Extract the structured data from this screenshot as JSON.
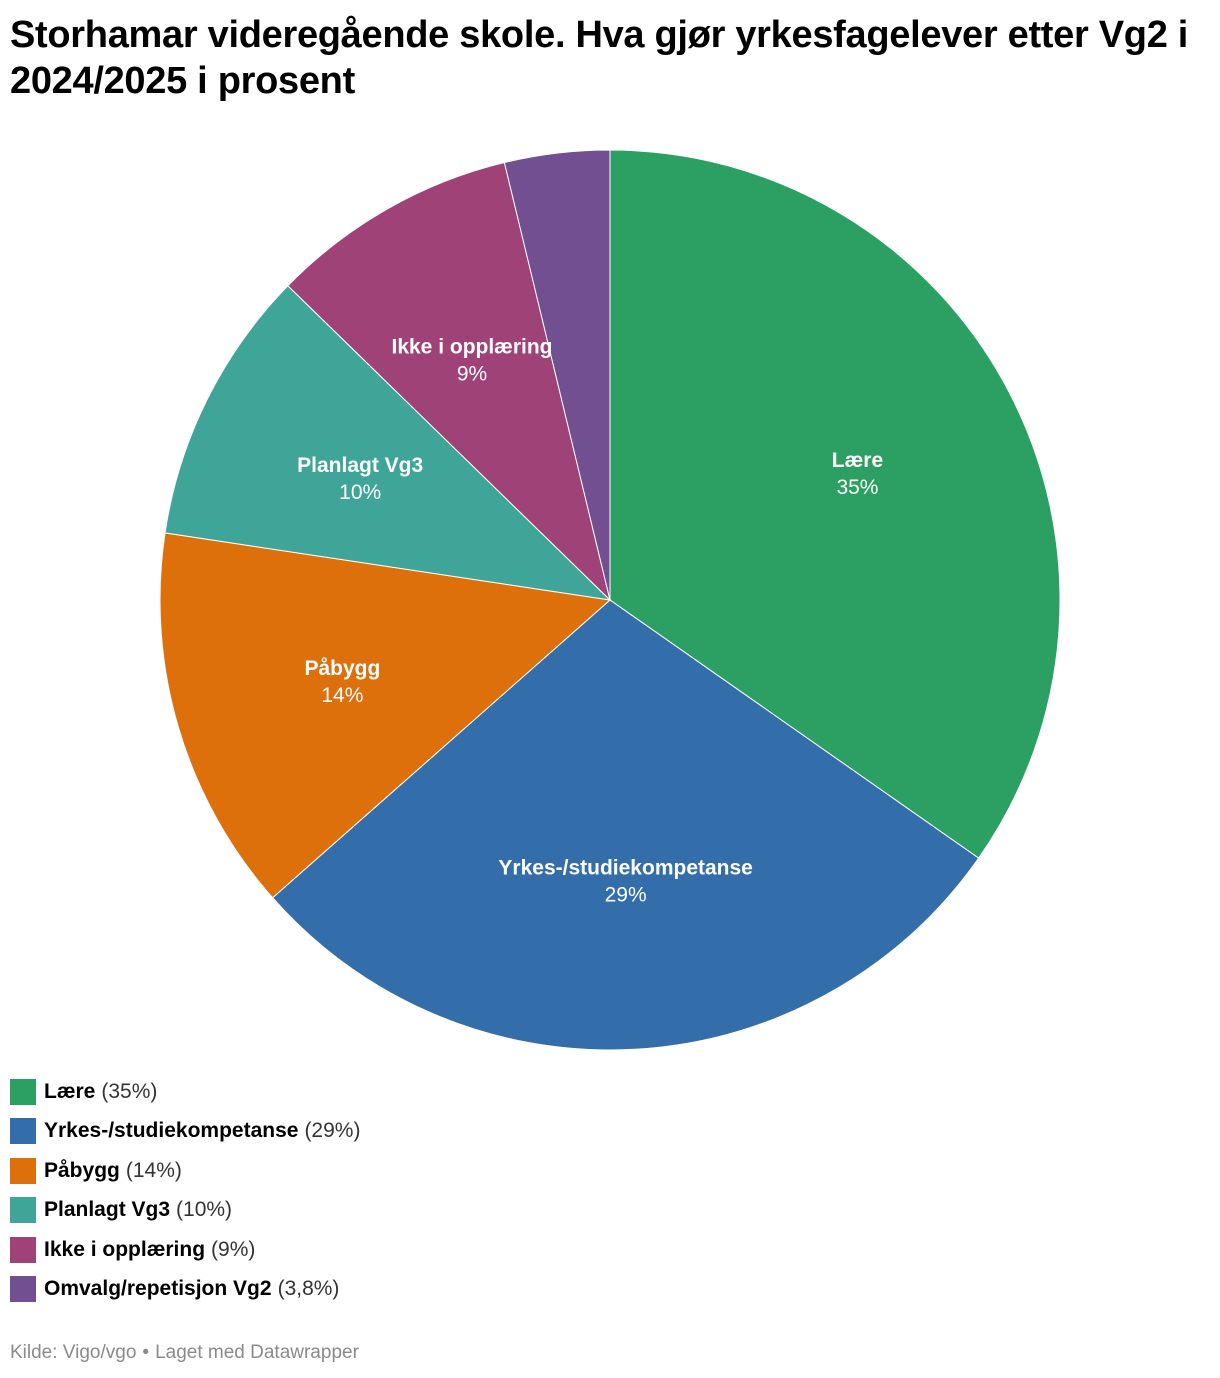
{
  "title": "Storhamar videregående skole. Hva gjør yrkesfagelever etter Vg2 i 2024/2025 i prosent",
  "chart_data": {
    "type": "pie",
    "title": "Storhamar videregående skole. Hva gjør yrkesfagelever etter Vg2 i 2024/2025 i prosent",
    "unit": "%",
    "start_angle": "12 o'clock, clockwise",
    "legend_position": "bottom-left",
    "slices": [
      {
        "name": "Lære",
        "value": 35,
        "value_label": "35%",
        "color": "#2ca062",
        "show_label": true
      },
      {
        "name": "Yrkes-/studiekompetanse",
        "value": 29,
        "value_label": "29%",
        "color": "#336eab",
        "show_label": true
      },
      {
        "name": "Påbygg",
        "value": 14,
        "value_label": "14%",
        "color": "#dd700a",
        "show_label": true
      },
      {
        "name": "Planlagt Vg3",
        "value": 10,
        "value_label": "10%",
        "color": "#3ea598",
        "show_label": true
      },
      {
        "name": "Ikke i opplæring",
        "value": 9,
        "value_label": "9%",
        "color": "#9e4277",
        "show_label": true
      },
      {
        "name": "Omvalg/repetisjon Vg2",
        "value": 3.8,
        "value_label": "3,8%",
        "color": "#714f91",
        "show_label": false
      }
    ]
  },
  "footer": {
    "source": "Kilde: Vigo/vgo",
    "separator": "•",
    "credit": "Laget med Datawrapper"
  }
}
